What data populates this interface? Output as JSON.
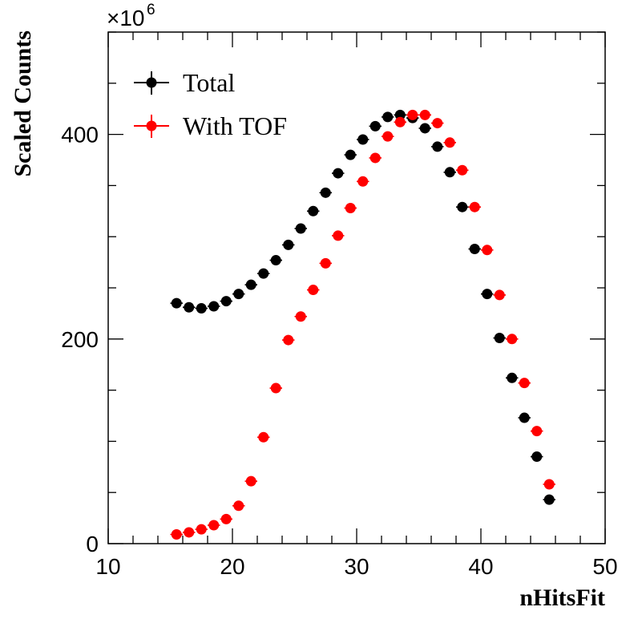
{
  "chart_data": {
    "type": "scatter",
    "xlabel": "nHitsFit",
    "ylabel": "Scaled Counts",
    "xlim": [
      10,
      50
    ],
    "ylim": [
      0,
      500
    ],
    "xticks": [
      10,
      20,
      30,
      40,
      50
    ],
    "yticks": [
      0,
      200,
      400
    ],
    "y_multiplier_base": "×10",
    "y_multiplier_exp": "6",
    "grid": false,
    "legend_position": "top-left",
    "series": [
      {
        "name": "Total",
        "color": "#000000",
        "x": [
          15.5,
          16.5,
          17.5,
          18.5,
          19.5,
          20.5,
          21.5,
          22.5,
          23.5,
          24.5,
          25.5,
          26.5,
          27.5,
          28.5,
          29.5,
          30.5,
          31.5,
          32.5,
          33.5,
          34.5,
          35.5,
          36.5,
          37.5,
          38.5,
          39.5,
          40.5,
          41.5,
          42.5,
          43.5,
          44.5,
          45.5
        ],
        "y": [
          235,
          231,
          230,
          232,
          237,
          244,
          253,
          264,
          277,
          292,
          308,
          325,
          343,
          362,
          380,
          395,
          408,
          417,
          419,
          416,
          406,
          388,
          363,
          329,
          288,
          244,
          201,
          162,
          123,
          85,
          43
        ]
      },
      {
        "name": "With TOF",
        "color": "#ff0000",
        "x": [
          15.5,
          16.5,
          17.5,
          18.5,
          19.5,
          20.5,
          21.5,
          22.5,
          23.5,
          24.5,
          25.5,
          26.5,
          27.5,
          28.5,
          29.5,
          30.5,
          31.5,
          32.5,
          33.5,
          34.5,
          35.5,
          36.5,
          37.5,
          38.5,
          39.5,
          40.5,
          41.5,
          42.5,
          43.5,
          44.5,
          45.5
        ],
        "y": [
          9,
          11,
          14,
          18,
          24,
          37,
          61,
          104,
          152,
          199,
          222,
          248,
          274,
          301,
          328,
          354,
          377,
          398,
          412,
          419,
          419,
          411,
          392,
          365,
          329,
          287,
          243,
          200,
          157,
          110,
          58
        ]
      }
    ]
  }
}
